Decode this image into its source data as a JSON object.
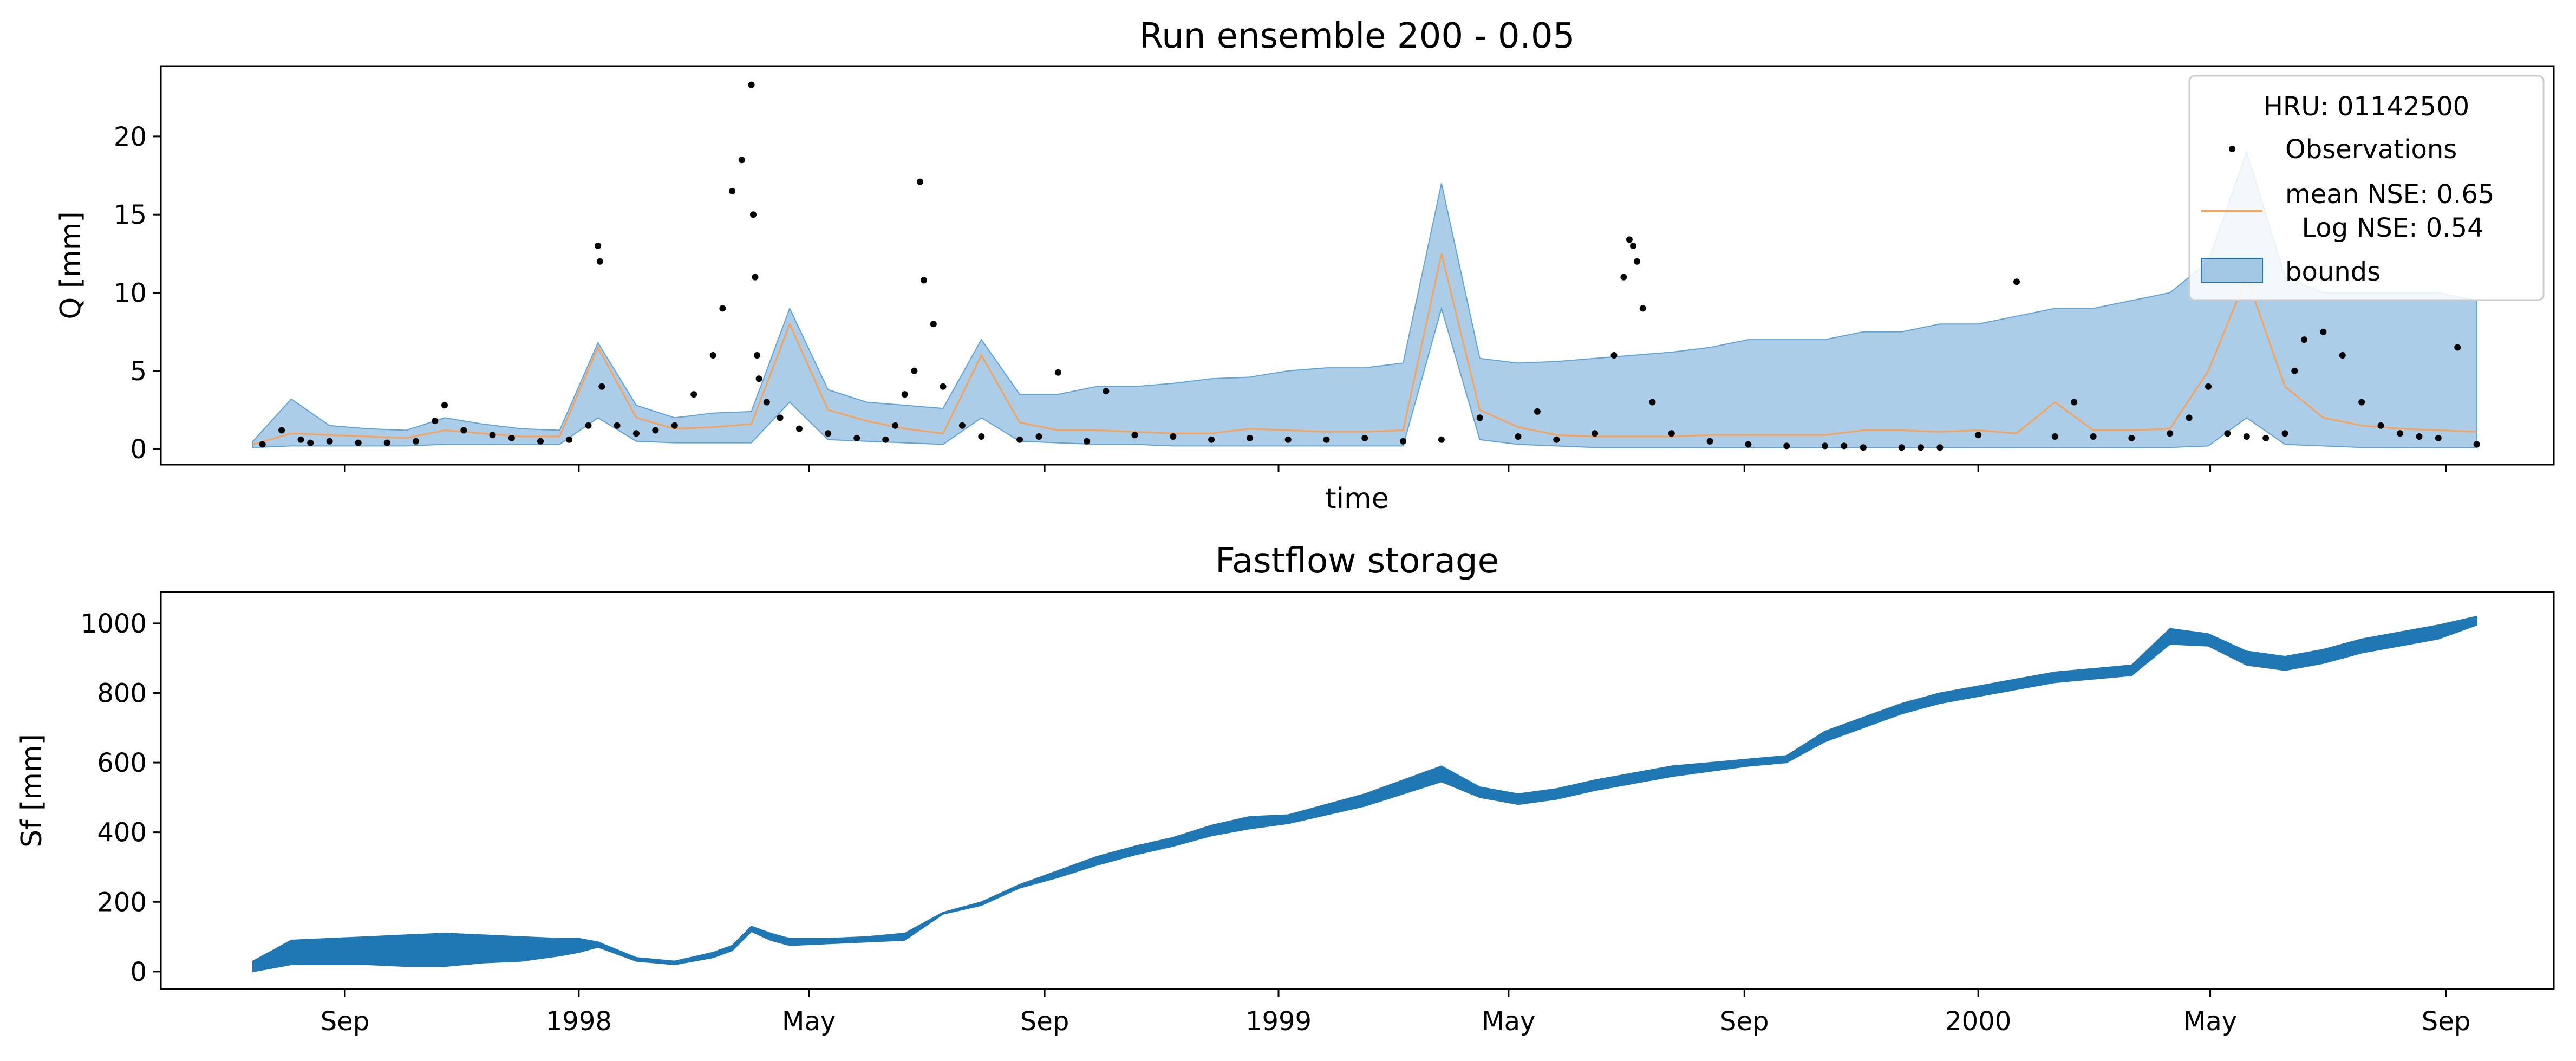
{
  "chart_data": [
    {
      "type": "line",
      "title": "Run ensemble 200 - 0.05",
      "xlabel": "time",
      "ylabel": "Q [mm]",
      "ylim": [
        -1,
        24.5
      ],
      "yticks": [
        0,
        5,
        10,
        15,
        20
      ],
      "legend": {
        "title": "HRU: 01142500",
        "placement": "top-right",
        "entries": [
          "Observations",
          "mean NSE: 0.65\n  Log NSE: 0.54",
          "bounds"
        ]
      },
      "series_styles": {
        "observations": "#000000",
        "mean": "#f5a35c",
        "bounds": "#8fbce0"
      },
      "x_days": [
        0,
        20,
        40,
        60,
        80,
        100,
        120,
        140,
        160,
        180,
        200,
        220,
        240,
        260,
        280,
        300,
        320,
        340,
        360,
        380,
        400,
        420,
        440,
        460,
        480,
        500,
        520,
        540,
        560,
        580,
        600,
        620,
        640,
        660,
        680,
        700,
        720,
        740,
        760,
        780,
        800,
        820,
        840,
        860,
        880,
        900,
        920,
        940,
        960,
        980,
        1000,
        1020,
        1040,
        1060,
        1080,
        1100,
        1120,
        1140,
        1160
      ],
      "mean": [
        0.3,
        1.0,
        0.9,
        0.8,
        0.7,
        1.2,
        1.0,
        0.8,
        0.8,
        6.5,
        2.0,
        1.3,
        1.4,
        1.6,
        8.0,
        2.5,
        1.8,
        1.3,
        1.0,
        6.0,
        1.7,
        1.2,
        1.2,
        1.1,
        1.0,
        1.0,
        1.3,
        1.2,
        1.1,
        1.1,
        1.2,
        12.5,
        2.5,
        1.4,
        0.9,
        0.8,
        0.8,
        0.8,
        0.9,
        0.9,
        0.9,
        0.9,
        1.2,
        1.2,
        1.1,
        1.2,
        1.0,
        3.0,
        1.2,
        1.2,
        1.3,
        5.0,
        11.0,
        4.0,
        2.0,
        1.5,
        1.3,
        1.2,
        1.1
      ],
      "upper": [
        0.5,
        3.2,
        1.5,
        1.3,
        1.2,
        2.0,
        1.6,
        1.3,
        1.2,
        6.8,
        2.8,
        2.0,
        2.3,
        2.4,
        9.0,
        3.8,
        3.0,
        2.8,
        2.6,
        7.0,
        3.5,
        3.5,
        4.0,
        4.0,
        4.2,
        4.5,
        4.6,
        5.0,
        5.2,
        5.2,
        5.5,
        17.0,
        5.8,
        5.5,
        5.6,
        5.8,
        6.0,
        6.2,
        6.5,
        7.0,
        7.0,
        7.0,
        7.5,
        7.5,
        8.0,
        8.0,
        8.5,
        9.0,
        9.0,
        9.5,
        10.0,
        12.0,
        19.0,
        11.0,
        10.0,
        10.0,
        10.0,
        10.0,
        9.5
      ],
      "lower": [
        0.1,
        0.2,
        0.2,
        0.2,
        0.2,
        0.3,
        0.3,
        0.3,
        0.3,
        2.0,
        0.5,
        0.4,
        0.4,
        0.4,
        3.0,
        0.6,
        0.5,
        0.4,
        0.3,
        2.0,
        0.5,
        0.4,
        0.3,
        0.3,
        0.2,
        0.2,
        0.2,
        0.2,
        0.2,
        0.2,
        0.2,
        9.0,
        0.6,
        0.3,
        0.2,
        0.1,
        0.1,
        0.1,
        0.1,
        0.1,
        0.1,
        0.1,
        0.1,
        0.1,
        0.1,
        0.1,
        0.1,
        0.1,
        0.1,
        0.1,
        0.1,
        0.2,
        2.0,
        0.3,
        0.2,
        0.1,
        0.1,
        0.1,
        0.1
      ],
      "observations_x_days": [
        5,
        15,
        25,
        30,
        40,
        55,
        70,
        85,
        95,
        100,
        110,
        125,
        135,
        150,
        165,
        175,
        180,
        181,
        182,
        190,
        200,
        210,
        220,
        230,
        240,
        245,
        250,
        255,
        260,
        261,
        262,
        263,
        264,
        268,
        275,
        285,
        300,
        315,
        330,
        335,
        340,
        345,
        348,
        350,
        355,
        360,
        370,
        380,
        400,
        410,
        420,
        435,
        445,
        460,
        480,
        500,
        520,
        540,
        560,
        580,
        600,
        620,
        640,
        660,
        670,
        680,
        700,
        710,
        715,
        718,
        720,
        722,
        725,
        730,
        740,
        760,
        780,
        800,
        820,
        830,
        840,
        860,
        870,
        880,
        900,
        920,
        940,
        950,
        960,
        980,
        1000,
        1010,
        1020,
        1030,
        1040,
        1050,
        1060,
        1065,
        1070,
        1080,
        1090,
        1100,
        1110,
        1120,
        1130,
        1140,
        1150,
        1160
      ],
      "observations": [
        0.3,
        1.2,
        0.6,
        0.4,
        0.5,
        0.4,
        0.4,
        0.5,
        1.8,
        2.8,
        1.2,
        0.9,
        0.7,
        0.5,
        0.6,
        1.5,
        13.0,
        12.0,
        4.0,
        1.5,
        1.0,
        1.2,
        1.5,
        3.5,
        6.0,
        9.0,
        16.5,
        18.5,
        23.3,
        15.0,
        11.0,
        6.0,
        4.5,
        3.0,
        2.0,
        1.3,
        1.0,
        0.7,
        0.6,
        1.5,
        3.5,
        5.0,
        17.1,
        10.8,
        8.0,
        4.0,
        1.5,
        0.8,
        0.6,
        0.8,
        4.9,
        0.5,
        3.7,
        0.9,
        0.8,
        0.6,
        0.7,
        0.6,
        0.6,
        0.7,
        0.5,
        0.6,
        2.0,
        0.8,
        2.4,
        0.6,
        1.0,
        6.0,
        11.0,
        13.4,
        13.0,
        12.0,
        9.0,
        3.0,
        1.0,
        0.5,
        0.3,
        0.2,
        0.2,
        0.2,
        0.1,
        0.1,
        0.1,
        0.1,
        0.9,
        10.7,
        0.8,
        3.0,
        0.8,
        0.7,
        1.0,
        2.0,
        4.0,
        1.0,
        0.8,
        0.7,
        1.0,
        5.0,
        7.0,
        7.5,
        6.0,
        3.0,
        1.5,
        1.0,
        0.8,
        0.7,
        6.5,
        0.3
      ]
    },
    {
      "type": "area",
      "title": "Fastflow storage",
      "xlabel": "",
      "ylabel": "Sf [mm]",
      "ylim": [
        -50,
        1090
      ],
      "yticks": [
        0,
        200,
        400,
        600,
        800,
        1000
      ],
      "color": "#1f77b4",
      "x_start": "1997-07-15",
      "x_end": "2000-09-01",
      "xticks": [
        {
          "date": "1997-09-01",
          "label": "Sep"
        },
        {
          "date": "1998-01-01",
          "label": "1998"
        },
        {
          "date": "1998-05-01",
          "label": "May"
        },
        {
          "date": "1998-09-01",
          "label": "Sep"
        },
        {
          "date": "1999-01-01",
          "label": "1999"
        },
        {
          "date": "1999-05-01",
          "label": "May"
        },
        {
          "date": "1999-09-01",
          "label": "Sep"
        },
        {
          "date": "2000-01-01",
          "label": "2000"
        },
        {
          "date": "2000-05-01",
          "label": "May"
        },
        {
          "date": "2000-09-01",
          "label": "Sep"
        }
      ],
      "x_days": [
        0,
        20,
        40,
        60,
        80,
        100,
        120,
        140,
        160,
        170,
        180,
        200,
        220,
        240,
        250,
        260,
        270,
        280,
        300,
        320,
        340,
        360,
        380,
        400,
        420,
        440,
        460,
        480,
        500,
        520,
        540,
        560,
        580,
        600,
        620,
        640,
        660,
        680,
        700,
        720,
        740,
        760,
        780,
        800,
        820,
        840,
        860,
        880,
        900,
        920,
        940,
        960,
        980,
        1000,
        1020,
        1040,
        1060,
        1080,
        1100,
        1120,
        1140,
        1160
      ],
      "upper": [
        30,
        90,
        95,
        100,
        105,
        110,
        105,
        100,
        95,
        95,
        85,
        40,
        30,
        55,
        75,
        130,
        110,
        95,
        95,
        100,
        110,
        170,
        200,
        250,
        290,
        330,
        360,
        385,
        420,
        445,
        450,
        480,
        510,
        550,
        590,
        530,
        510,
        525,
        550,
        570,
        590,
        600,
        610,
        620,
        690,
        730,
        770,
        800,
        820,
        840,
        860,
        870,
        880,
        985,
        970,
        920,
        905,
        925,
        955,
        975,
        995,
        1020
      ],
      "lower": [
        0,
        20,
        20,
        20,
        15,
        15,
        25,
        30,
        45,
        55,
        70,
        30,
        20,
        40,
        60,
        115,
        90,
        75,
        80,
        85,
        90,
        165,
        190,
        240,
        270,
        305,
        335,
        360,
        390,
        410,
        425,
        450,
        475,
        510,
        545,
        500,
        480,
        495,
        520,
        540,
        560,
        575,
        590,
        600,
        660,
        700,
        740,
        770,
        790,
        810,
        830,
        840,
        850,
        940,
        935,
        880,
        865,
        885,
        915,
        935,
        955,
        995
      ]
    }
  ]
}
